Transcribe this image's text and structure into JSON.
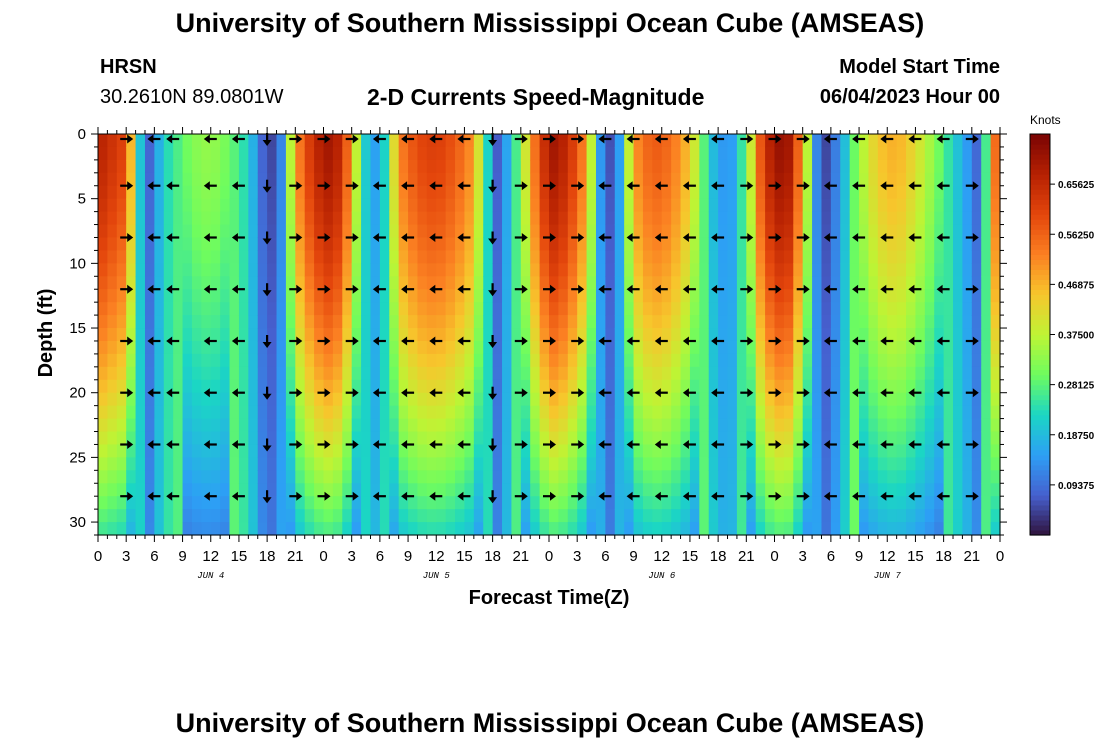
{
  "header": {
    "title": "University of Southern Mississippi Ocean Cube (AMSEAS)",
    "station": "HRSN",
    "coordinates": "30.2610N  89.0801W",
    "subtitle": "2-D Currents Speed-Magnitude",
    "model_start_label": "Model Start Time",
    "model_start_value": "06/04/2023 Hour 00"
  },
  "footer": {
    "title": "University of Southern Mississippi Ocean Cube (AMSEAS)"
  },
  "chart_data": {
    "type": "heatmap",
    "title": "2-D Currents Speed-Magnitude",
    "xlabel": "Forecast Time(Z)",
    "ylabel": "Depth (ft)",
    "xlim": [
      0,
      96
    ],
    "ylim": [
      31,
      0
    ],
    "x_tick_labels": [
      "0",
      "3",
      "6",
      "9",
      "12",
      "15",
      "18",
      "21",
      "0",
      "3",
      "6",
      "9",
      "12",
      "15",
      "18",
      "21",
      "0",
      "3",
      "6",
      "9",
      "12",
      "15",
      "18",
      "21",
      "0",
      "3",
      "6",
      "9",
      "12",
      "15",
      "18",
      "21",
      "0"
    ],
    "x_tick_hours": [
      0,
      3,
      6,
      9,
      12,
      15,
      18,
      21,
      24,
      27,
      30,
      33,
      36,
      39,
      42,
      45,
      48,
      51,
      54,
      57,
      60,
      63,
      66,
      69,
      72,
      75,
      78,
      81,
      84,
      87,
      90,
      93,
      96
    ],
    "day_labels": [
      {
        "hour": 12,
        "label": "JUN 4"
      },
      {
        "hour": 36,
        "label": "JUN 5"
      },
      {
        "hour": 60,
        "label": "JUN 6"
      },
      {
        "hour": 84,
        "label": "JUN 7"
      }
    ],
    "y_tick_labels": [
      "0",
      "5",
      "10",
      "15",
      "20",
      "25",
      "30"
    ],
    "y_ticks": [
      0,
      5,
      10,
      15,
      20,
      25,
      30
    ],
    "colorbar": {
      "label": "Knots",
      "min": 0,
      "max": 0.75,
      "tick_labels": [
        "0.65625",
        "0.56250",
        "0.46875",
        "0.37500",
        "0.28125",
        "0.18750",
        "0.09375"
      ],
      "tick_values": [
        0.65625,
        0.5625,
        0.46875,
        0.375,
        0.28125,
        0.1875,
        0.09375
      ]
    },
    "speed_profile_by_hour": [
      [
        0,
        0.68
      ],
      [
        3,
        0.6
      ],
      [
        4.5,
        0.2
      ],
      [
        5.5,
        0.08
      ],
      [
        7,
        0.22
      ],
      [
        10,
        0.32
      ],
      [
        12,
        0.34
      ],
      [
        14,
        0.3
      ],
      [
        16,
        0.22
      ],
      [
        17.5,
        0.08
      ],
      [
        18.5,
        0.05
      ],
      [
        19.5,
        0.12
      ],
      [
        21,
        0.5
      ],
      [
        23,
        0.66
      ],
      [
        24.5,
        0.7
      ],
      [
        26,
        0.66
      ],
      [
        27.5,
        0.38
      ],
      [
        29,
        0.12
      ],
      [
        30.5,
        0.22
      ],
      [
        32,
        0.52
      ],
      [
        34,
        0.6
      ],
      [
        36,
        0.62
      ],
      [
        38,
        0.58
      ],
      [
        40,
        0.5
      ],
      [
        41.5,
        0.22
      ],
      [
        42.5,
        0.07
      ],
      [
        44,
        0.2
      ],
      [
        45.5,
        0.4
      ],
      [
        47,
        0.62
      ],
      [
        48.5,
        0.7
      ],
      [
        50,
        0.66
      ],
      [
        52,
        0.5
      ],
      [
        53.5,
        0.14
      ],
      [
        54.5,
        0.06
      ],
      [
        55.5,
        0.15
      ],
      [
        57,
        0.5
      ],
      [
        59,
        0.58
      ],
      [
        61,
        0.55
      ],
      [
        63,
        0.45
      ],
      [
        64.5,
        0.28
      ],
      [
        66,
        0.14
      ],
      [
        67.5,
        0.15
      ],
      [
        69,
        0.3
      ],
      [
        70.5,
        0.58
      ],
      [
        72,
        0.72
      ],
      [
        73.5,
        0.7
      ],
      [
        75,
        0.5
      ],
      [
        76.5,
        0.12
      ],
      [
        77.5,
        0.05
      ],
      [
        79,
        0.14
      ],
      [
        81,
        0.35
      ],
      [
        83,
        0.45
      ],
      [
        85,
        0.48
      ],
      [
        87,
        0.42
      ],
      [
        89,
        0.33
      ],
      [
        91,
        0.22
      ],
      [
        93,
        0.12
      ],
      [
        94,
        0.05
      ],
      [
        95,
        0.48
      ],
      [
        96,
        0.62
      ]
    ],
    "arrow_depths_ft": [
      0,
      4,
      8,
      12,
      16,
      20,
      24,
      28
    ],
    "arrow_hours": [
      3,
      6,
      8,
      12,
      15,
      18,
      21,
      24,
      27,
      30,
      33,
      36,
      39,
      42,
      45,
      48,
      51,
      54,
      57,
      60,
      63,
      66,
      69,
      72,
      75,
      78,
      81,
      84,
      87,
      90,
      93
    ],
    "arrow_direction_by_hour": [
      {
        "hour": 3,
        "dir": "east"
      },
      {
        "hour": 6,
        "dir": "west"
      },
      {
        "hour": 8,
        "dir": "west"
      },
      {
        "hour": 12,
        "dir": "west"
      },
      {
        "hour": 15,
        "dir": "west"
      },
      {
        "hour": 18,
        "dir": "south"
      },
      {
        "hour": 21,
        "dir": "east"
      },
      {
        "hour": 24,
        "dir": "east"
      },
      {
        "hour": 27,
        "dir": "east"
      },
      {
        "hour": 30,
        "dir": "west"
      },
      {
        "hour": 33,
        "dir": "west"
      },
      {
        "hour": 36,
        "dir": "west"
      },
      {
        "hour": 39,
        "dir": "west"
      },
      {
        "hour": 42,
        "dir": "south"
      },
      {
        "hour": 45,
        "dir": "east"
      },
      {
        "hour": 48,
        "dir": "east"
      },
      {
        "hour": 51,
        "dir": "east"
      },
      {
        "hour": 54,
        "dir": "west"
      },
      {
        "hour": 57,
        "dir": "west"
      },
      {
        "hour": 60,
        "dir": "west"
      },
      {
        "hour": 63,
        "dir": "west"
      },
      {
        "hour": 66,
        "dir": "west"
      },
      {
        "hour": 69,
        "dir": "east"
      },
      {
        "hour": 72,
        "dir": "east"
      },
      {
        "hour": 75,
        "dir": "east"
      },
      {
        "hour": 78,
        "dir": "west"
      },
      {
        "hour": 81,
        "dir": "west"
      },
      {
        "hour": 84,
        "dir": "west"
      },
      {
        "hour": 87,
        "dir": "west"
      },
      {
        "hour": 90,
        "dir": "west"
      },
      {
        "hour": 93,
        "dir": "east"
      }
    ]
  }
}
